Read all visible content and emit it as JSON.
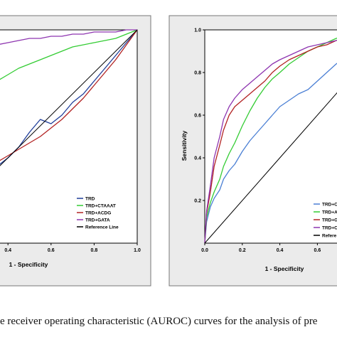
{
  "caption": "e receiver operating characteristic (AUROC) curves for the analysis of pre",
  "chart_data": [
    {
      "type": "line",
      "title": "",
      "xlabel": "1 - Specificity",
      "ylabel": "",
      "xlim": [
        0,
        1
      ],
      "ylim": [
        0,
        1
      ],
      "x_ticks": [
        "0.4",
        "0.6",
        "0.8",
        "1.0"
      ],
      "y_ticks": [],
      "grid": false,
      "legend_position": "bottom-right",
      "series": [
        {
          "name": "TRD",
          "color": "#1f3d99",
          "x": [
            0.0,
            0.05,
            0.1,
            0.15,
            0.2,
            0.25,
            0.3,
            0.35,
            0.4,
            0.45,
            0.5,
            0.55,
            0.6,
            0.65,
            0.7,
            0.75,
            0.8,
            0.85,
            0.9,
            0.95,
            1.0
          ],
          "y": [
            0.1,
            0.12,
            0.15,
            0.18,
            0.25,
            0.28,
            0.32,
            0.36,
            0.4,
            0.45,
            0.52,
            0.58,
            0.56,
            0.6,
            0.66,
            0.7,
            0.76,
            0.82,
            0.88,
            0.94,
            1.0
          ]
        },
        {
          "name": "TRD+CTAAAT",
          "color": "#33cc33",
          "x": [
            0.0,
            0.05,
            0.1,
            0.15,
            0.2,
            0.25,
            0.3,
            0.35,
            0.4,
            0.45,
            0.5,
            0.55,
            0.6,
            0.65,
            0.7,
            0.75,
            0.8,
            0.85,
            0.9,
            0.95,
            1.0
          ],
          "y": [
            0.55,
            0.58,
            0.61,
            0.64,
            0.67,
            0.7,
            0.73,
            0.76,
            0.79,
            0.82,
            0.84,
            0.86,
            0.88,
            0.9,
            0.92,
            0.93,
            0.94,
            0.95,
            0.96,
            0.98,
            1.0
          ]
        },
        {
          "name": "TRD+ACDG",
          "color": "#b22222",
          "x": [
            0.0,
            0.05,
            0.1,
            0.15,
            0.2,
            0.25,
            0.3,
            0.35,
            0.4,
            0.45,
            0.5,
            0.55,
            0.6,
            0.65,
            0.7,
            0.75,
            0.8,
            0.85,
            0.9,
            0.95,
            1.0
          ],
          "y": [
            0.2,
            0.22,
            0.24,
            0.27,
            0.29,
            0.31,
            0.34,
            0.38,
            0.41,
            0.44,
            0.47,
            0.5,
            0.54,
            0.58,
            0.63,
            0.68,
            0.74,
            0.8,
            0.86,
            0.93,
            1.0
          ]
        },
        {
          "name": "TRD+GATA",
          "color": "#8e35b0",
          "x": [
            0.0,
            0.05,
            0.1,
            0.15,
            0.2,
            0.25,
            0.3,
            0.35,
            0.4,
            0.45,
            0.5,
            0.55,
            0.6,
            0.65,
            0.7,
            0.75,
            0.8,
            0.85,
            0.9,
            0.95,
            1.0
          ],
          "y": [
            0.8,
            0.83,
            0.86,
            0.88,
            0.9,
            0.91,
            0.92,
            0.93,
            0.94,
            0.95,
            0.96,
            0.96,
            0.97,
            0.97,
            0.98,
            0.98,
            0.99,
            0.99,
            0.99,
            1.0,
            1.0
          ]
        },
        {
          "name": "Reference Line",
          "color": "#000000",
          "x": [
            0,
            1
          ],
          "y": [
            0,
            1
          ]
        }
      ]
    },
    {
      "type": "line",
      "title": "",
      "xlabel": "1 - Specificity",
      "ylabel": "Sensitivity",
      "xlim": [
        0,
        1
      ],
      "ylim": [
        0,
        1
      ],
      "x_ticks": [
        "0.0",
        "0.2",
        "0.4",
        "0.6"
      ],
      "y_ticks": [
        "0.2",
        "0.4",
        "0.6",
        "0.8",
        "1.0"
      ],
      "grid": false,
      "legend_position": "bottom-right",
      "series": [
        {
          "name": "TRD+C",
          "color": "#4a7fd4",
          "x": [
            0.0,
            0.01,
            0.03,
            0.05,
            0.08,
            0.1,
            0.13,
            0.16,
            0.2,
            0.24,
            0.28,
            0.32,
            0.36,
            0.4,
            0.45,
            0.5,
            0.55,
            0.6,
            0.65,
            0.7,
            0.75,
            0.8,
            0.85,
            0.9,
            0.95,
            1.0
          ],
          "y": [
            0.0,
            0.1,
            0.17,
            0.21,
            0.25,
            0.3,
            0.34,
            0.37,
            0.43,
            0.48,
            0.52,
            0.56,
            0.6,
            0.64,
            0.67,
            0.7,
            0.72,
            0.76,
            0.8,
            0.84,
            0.87,
            0.9,
            0.93,
            0.96,
            0.98,
            1.0
          ]
        },
        {
          "name": "TRD+A",
          "color": "#33cc33",
          "x": [
            0.0,
            0.01,
            0.03,
            0.05,
            0.08,
            0.1,
            0.13,
            0.16,
            0.2,
            0.24,
            0.28,
            0.32,
            0.36,
            0.4,
            0.45,
            0.5,
            0.55,
            0.6,
            0.65,
            0.7,
            0.75,
            0.8,
            0.85,
            0.9,
            0.95,
            1.0
          ],
          "y": [
            0.0,
            0.12,
            0.19,
            0.24,
            0.3,
            0.36,
            0.42,
            0.47,
            0.55,
            0.62,
            0.68,
            0.73,
            0.77,
            0.8,
            0.84,
            0.87,
            0.9,
            0.92,
            0.94,
            0.96,
            0.97,
            0.98,
            0.99,
            0.99,
            1.0,
            1.0
          ]
        },
        {
          "name": "TRD+Ga",
          "color": "#b22222",
          "x": [
            0.0,
            0.01,
            0.03,
            0.05,
            0.08,
            0.1,
            0.13,
            0.16,
            0.2,
            0.24,
            0.28,
            0.32,
            0.36,
            0.4,
            0.45,
            0.5,
            0.55,
            0.6,
            0.65,
            0.7,
            0.75,
            0.8,
            0.85,
            0.9,
            0.95,
            1.0
          ],
          "y": [
            0.0,
            0.14,
            0.24,
            0.36,
            0.46,
            0.53,
            0.6,
            0.64,
            0.67,
            0.7,
            0.73,
            0.76,
            0.8,
            0.83,
            0.86,
            0.88,
            0.9,
            0.92,
            0.93,
            0.95,
            0.96,
            0.97,
            0.98,
            0.99,
            1.0,
            1.0
          ]
        },
        {
          "name": "TRD+C",
          "color": "#8e35b0",
          "x": [
            0.0,
            0.01,
            0.03,
            0.05,
            0.08,
            0.1,
            0.13,
            0.16,
            0.2,
            0.24,
            0.28,
            0.32,
            0.36,
            0.4,
            0.45,
            0.5,
            0.55,
            0.6,
            0.65,
            0.7,
            0.75,
            0.8,
            0.85,
            0.9,
            0.95,
            1.0
          ],
          "y": [
            0.0,
            0.15,
            0.27,
            0.4,
            0.5,
            0.58,
            0.64,
            0.68,
            0.72,
            0.75,
            0.78,
            0.81,
            0.84,
            0.86,
            0.88,
            0.9,
            0.92,
            0.93,
            0.94,
            0.95,
            0.96,
            0.97,
            0.98,
            0.99,
            1.0,
            1.0
          ]
        },
        {
          "name": "Refere",
          "color": "#000000",
          "x": [
            0,
            1
          ],
          "y": [
            0,
            1
          ]
        }
      ]
    }
  ]
}
